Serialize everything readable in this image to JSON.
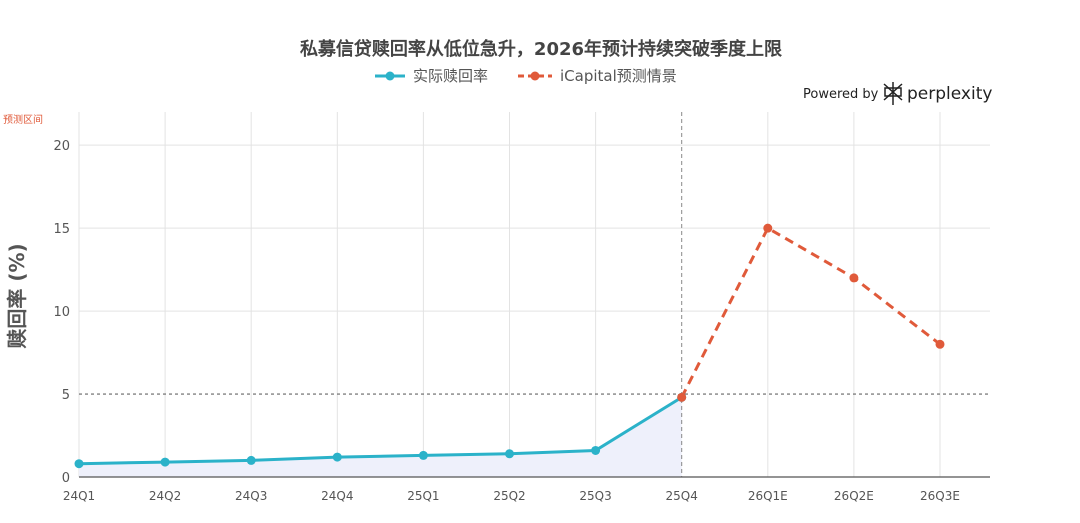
{
  "branding": {
    "powered_by": "Powered by",
    "name": "perplexity"
  },
  "forecast_zone_label": "预测区间",
  "colors": {
    "actual": "#2bb2c9",
    "forecast": "#e05a3a",
    "area_fill": "#eef0fb",
    "grid": "#e3e3e3",
    "ref_line": "#666666"
  },
  "chart_data": {
    "type": "line",
    "title": "私募信贷赎回率从低位急升，2026年预计持续突破季度上限",
    "ylabel": "赎回率 (%)",
    "xlabel": "",
    "categories": [
      "24Q1",
      "24Q2",
      "24Q3",
      "24Q4",
      "25Q1",
      "25Q2",
      "25Q3",
      "25Q4",
      "26Q1E",
      "26Q2E",
      "26Q3E"
    ],
    "ylim": [
      0,
      22
    ],
    "yticks": [
      0,
      5,
      10,
      15,
      20
    ],
    "grid": true,
    "legend_position": "top-center",
    "reference_line": 5,
    "forecast_start": "25Q4",
    "series": [
      {
        "name": "实际赎回率",
        "style": "solid-area",
        "x": [
          "24Q1",
          "24Q2",
          "24Q3",
          "24Q4",
          "25Q1",
          "25Q2",
          "25Q3",
          "25Q4"
        ],
        "values": [
          0.8,
          0.9,
          1.0,
          1.2,
          1.3,
          1.4,
          1.6,
          4.8
        ]
      },
      {
        "name": "iCapital预测情景",
        "style": "dashed",
        "x": [
          "25Q4",
          "26Q1E",
          "26Q2E",
          "26Q3E"
        ],
        "values": [
          4.8,
          15,
          12,
          8
        ]
      }
    ]
  }
}
